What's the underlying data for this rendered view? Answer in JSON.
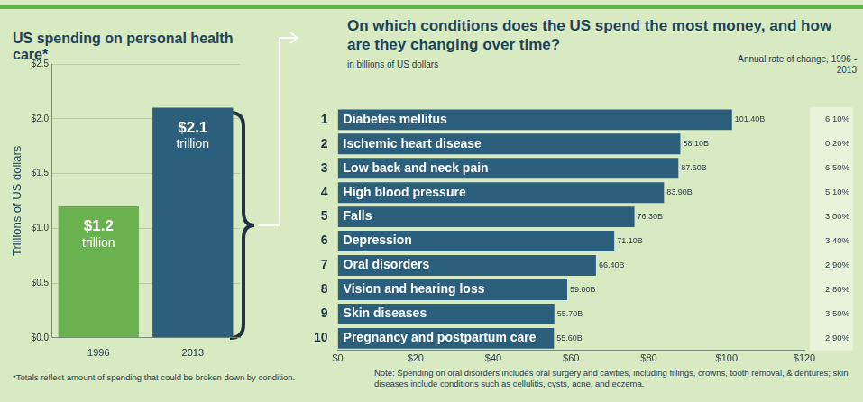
{
  "chart_data": [
    {
      "type": "bar",
      "title": "US spending on personal health care*",
      "y_label": "Trillions of US dollars",
      "categories": [
        "1996",
        "2013"
      ],
      "values": [
        1.2,
        2.1
      ],
      "value_labels": [
        "$1.2 trillion",
        "$2.1 trillion"
      ],
      "data_labels": true,
      "colors": [
        "#6ab150",
        "#2c5f7c"
      ],
      "ylim": [
        0,
        2.5
      ],
      "yticks": [
        {
          "value": 0,
          "label": "$0.0"
        },
        {
          "value": 0.5,
          "label": "$0.5"
        },
        {
          "value": 1,
          "label": "$1.0"
        },
        {
          "value": 1.5,
          "label": "$1.5"
        },
        {
          "value": 2,
          "label": "$2.0"
        },
        {
          "value": 2.5,
          "label": "$2.5"
        }
      ],
      "grid": true,
      "note": "*Totals reflect amount of spending that could be broken down by condition."
    },
    {
      "type": "bar",
      "orientation": "horizontal",
      "title": "On which conditions does the US spend the most money, and how are they changing over time?",
      "subtitle": "in billions of US dollars",
      "ranks": [
        1,
        2,
        3,
        4,
        5,
        6,
        7,
        8,
        9,
        10
      ],
      "categories": [
        "Diabetes mellitus",
        "Ischemic heart disease",
        "Low back and neck pain",
        "High blood pressure",
        "Falls",
        "Depression",
        "Oral disorders",
        "Vision and hearing loss",
        "Skin diseases",
        "Pregnancy and postpartum care"
      ],
      "values": [
        101.4,
        88.1,
        87.6,
        83.9,
        76.3,
        71.1,
        66.4,
        59.0,
        55.7,
        55.6
      ],
      "value_labels": [
        "101.40B",
        "88.10B",
        "87.60B",
        "83.90B",
        "76.30B",
        "71.10B",
        "66.40B",
        "59.00B",
        "55.70B",
        "55.60B"
      ],
      "data_labels": true,
      "color": "#2c5f7c",
      "xlim": [
        0,
        120
      ],
      "xticks": [
        {
          "value": 0,
          "label": "$0"
        },
        {
          "value": 20,
          "label": "$20"
        },
        {
          "value": 40,
          "label": "$40"
        },
        {
          "value": 60,
          "label": "$60"
        },
        {
          "value": 80,
          "label": "$80"
        },
        {
          "value": 100,
          "label": "$100"
        },
        {
          "value": 120,
          "label": "$120"
        }
      ],
      "grid": false,
      "annual_rate_of_change": {
        "title": "Annual rate of change, 1996 - 2013",
        "values": [
          6.1,
          0.2,
          6.5,
          5.1,
          3.0,
          3.4,
          2.9,
          2.8,
          3.5,
          2.9
        ],
        "labels": [
          "6.10%",
          "0.20%",
          "6.50%",
          "5.10%",
          "3.00%",
          "3.40%",
          "2.90%",
          "2.80%",
          "3.50%",
          "2.90%"
        ]
      },
      "note": "Note: Spending on oral disorders includes oral surgery and cavities, including fillings, crowns, tooth removal, & dentures; skin diseases include conditions such as cellulitis, cysts, acne, and eczema."
    }
  ]
}
